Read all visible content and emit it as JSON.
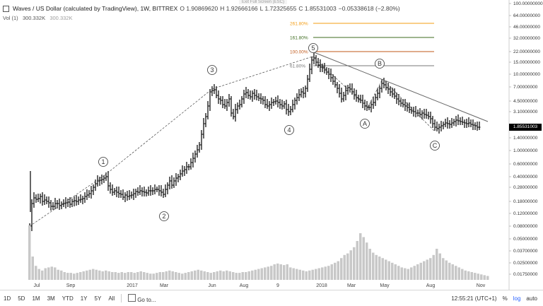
{
  "legend": {
    "title": "Waves / US Dollar (calculated by TradingView), 1W, BITTREX",
    "open": "O 1.90869620",
    "high": "H 1.92666166",
    "low": "L 1.72325655",
    "close": "C 1.85531003",
    "change": "−0.05338618 (−2.80%)"
  },
  "volume_legend": {
    "label": "Vol (1)",
    "value1": "300.332K",
    "value2": "300.332K"
  },
  "exit_fullscreen": "Exit Full Screen (ESC)",
  "price_axis": [
    "100.00000000",
    "64.00000000",
    "46.00000000",
    "32.00000000",
    "22.00000000",
    "15.00000000",
    "10.00000000",
    "7.00000000",
    "4.50000000",
    "3.10000000",
    "1.40000000",
    "1.00000000",
    "0.60000000",
    "0.40000000",
    "0.28000000",
    "0.18000000",
    "0.12000000",
    "0.08000000",
    "0.05000000",
    "0.03700000",
    "0.02500000",
    "0.01750000"
  ],
  "current_price": "1.85531003",
  "time_axis": [
    "Jul",
    "Sep",
    "2017",
    "Mar",
    "Jun",
    "Aug",
    "9",
    "2018",
    "Mar",
    "May",
    "Aug",
    "Nov"
  ],
  "fib_levels": [
    {
      "label": "261.80%",
      "color": "#f39c12"
    },
    {
      "label": "161.80%",
      "color": "#3d6b1e"
    },
    {
      "label": "100.00%",
      "color": "#c0581a"
    },
    {
      "label": "61.80%",
      "color": "#777777"
    }
  ],
  "wave_labels": [
    "1",
    "2",
    "3",
    "4",
    "5",
    "A",
    "B",
    "C"
  ],
  "bottom_bar": {
    "ranges": [
      "1D",
      "5D",
      "1M",
      "3M",
      "YTD",
      "1Y",
      "5Y",
      "All"
    ],
    "goto": "Go to...",
    "time": "12:55:21 (UTC+1)",
    "percent": "%",
    "log": "log",
    "auto": "auto"
  }
}
